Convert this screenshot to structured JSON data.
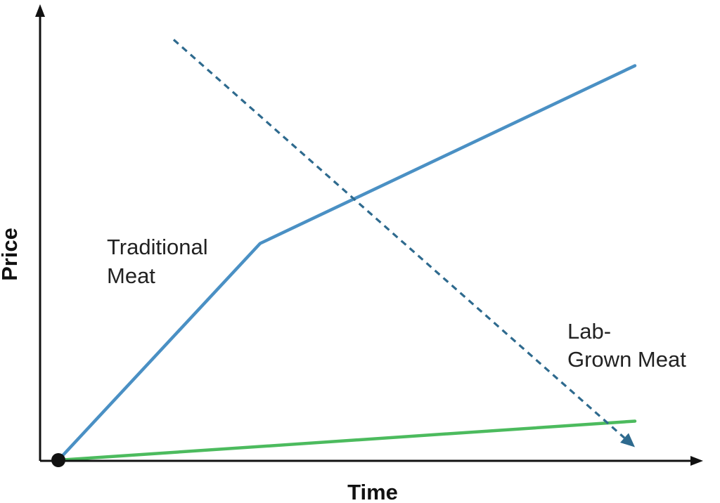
{
  "chart_data": {
    "type": "line",
    "xlabel": "Time",
    "ylabel": "Price",
    "xlim": [
      0,
      100
    ],
    "ylim": [
      0,
      100
    ],
    "ticks": "none",
    "grid": false,
    "series": [
      {
        "name": "Traditional Meat",
        "color": "#4a90c4",
        "style": "solid",
        "points": [
          [
            0,
            0
          ],
          [
            35,
            50
          ],
          [
            100,
            91
          ]
        ]
      },
      {
        "name": "Lab-Grown Meat",
        "color": "#2e6a8e",
        "style": "dashed-arrow",
        "points": [
          [
            20,
            97
          ],
          [
            100,
            3
          ]
        ]
      },
      {
        "name": "",
        "color": "#4cbb5e",
        "style": "solid",
        "points": [
          [
            0,
            0
          ],
          [
            100,
            9
          ]
        ]
      }
    ],
    "annotations": [
      {
        "lines": [
          "Traditional",
          "Meat"
        ]
      },
      {
        "lines": [
          "Lab-",
          "Grown Meat"
        ]
      }
    ],
    "origin_marker": true
  }
}
